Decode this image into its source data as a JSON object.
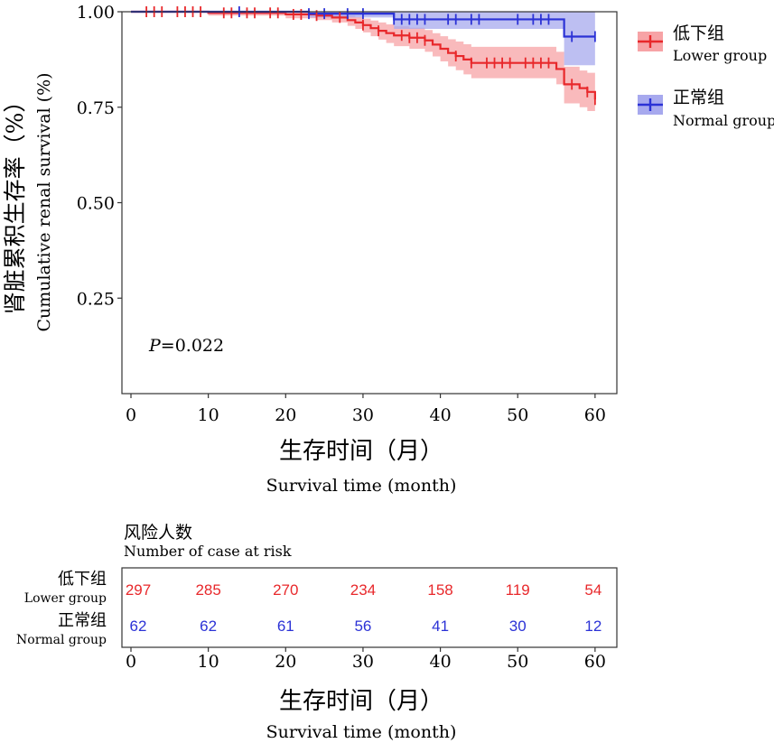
{
  "chart_data": {
    "type": "kaplan-meier",
    "ylabel_cn": "肾脏累积生存率（%）",
    "ylabel_en": "Cumulative renal survival (%)",
    "xlabel_cn": "生存时间（月）",
    "xlabel_en": "Survival time (month)",
    "xlim": [
      0,
      62
    ],
    "ylim": [
      0,
      1.0
    ],
    "x_ticks": [
      "0",
      "10",
      "20",
      "30",
      "40",
      "50",
      "60"
    ],
    "y_ticks": [
      "1.00",
      "0.75",
      "0.50",
      "0.25"
    ],
    "p_value_label": "P",
    "p_value_text": "=0.022",
    "legend": [
      {
        "name_cn": "低下组",
        "name_en": "Lower group",
        "color": "#e8282b"
      },
      {
        "name_cn": "正常组",
        "name_en": "Normal group",
        "color": "#2b32d6"
      }
    ],
    "series": [
      {
        "name": "低下组",
        "color": "#e8282b",
        "band_color": "#f7a3a6",
        "step_x": [
          0,
          10,
          20,
          24,
          26,
          28,
          29,
          30,
          31,
          32,
          33,
          34,
          36,
          38,
          39,
          40,
          41,
          42,
          43,
          44,
          50,
          55,
          56,
          58,
          59,
          60
        ],
        "step_y": [
          1.0,
          0.997,
          0.993,
          0.99,
          0.985,
          0.978,
          0.972,
          0.965,
          0.957,
          0.95,
          0.944,
          0.938,
          0.932,
          0.925,
          0.914,
          0.903,
          0.892,
          0.884,
          0.875,
          0.866,
          0.866,
          0.85,
          0.81,
          0.8,
          0.79,
          0.77
        ],
        "band_upper": [
          1.0,
          1.0,
          1.0,
          0.998,
          0.995,
          0.99,
          0.986,
          0.982,
          0.977,
          0.972,
          0.967,
          0.962,
          0.958,
          0.952,
          0.944,
          0.936,
          0.928,
          0.922,
          0.915,
          0.908,
          0.908,
          0.895,
          0.856,
          0.846,
          0.84,
          0.83
        ],
        "band_lower": [
          1.0,
          0.99,
          0.983,
          0.978,
          0.972,
          0.963,
          0.955,
          0.946,
          0.936,
          0.927,
          0.918,
          0.91,
          0.903,
          0.895,
          0.883,
          0.87,
          0.857,
          0.847,
          0.836,
          0.826,
          0.826,
          0.81,
          0.76,
          0.75,
          0.74,
          0.72
        ],
        "censor_x": [
          2,
          3,
          4,
          6,
          7,
          8,
          9,
          12,
          13,
          15,
          16,
          18,
          19,
          21,
          22,
          24,
          27,
          30,
          32,
          35,
          36,
          37,
          38,
          42,
          44,
          46,
          47,
          48,
          49,
          51,
          52,
          53,
          54,
          57,
          59,
          60
        ]
      },
      {
        "name": "正常组",
        "color": "#2b32d6",
        "band_color": "#a7a9ee",
        "step_x": [
          0,
          23,
          34,
          56,
          60
        ],
        "step_y": [
          1.0,
          0.995,
          0.98,
          0.935,
          0.935
        ],
        "band_upper": [
          1.0,
          1.0,
          1.0,
          1.0,
          1.0
        ],
        "band_lower": [
          1.0,
          0.985,
          0.955,
          0.86,
          0.86
        ],
        "censor_x": [
          14,
          23,
          25,
          28,
          30,
          34,
          35,
          36,
          37,
          38,
          41,
          42,
          44,
          45,
          50,
          52,
          53,
          54,
          57,
          60
        ]
      }
    ],
    "risk_table": {
      "title_cn": "风险人数",
      "title_en": "Number of case at risk",
      "rows": [
        {
          "name_cn": "低下组",
          "name_en": "Lower group",
          "color": "#e8282b",
          "values": [
            "297",
            "285",
            "270",
            "234",
            "158",
            "119",
            "54"
          ]
        },
        {
          "name_cn": "正常组",
          "name_en": "Normal group",
          "color": "#2b32d6",
          "values": [
            "62",
            "62",
            "61",
            "56",
            "41",
            "30",
            "12"
          ]
        }
      ],
      "x_ticks": [
        "0",
        "10",
        "20",
        "30",
        "40",
        "50",
        "60"
      ]
    }
  }
}
